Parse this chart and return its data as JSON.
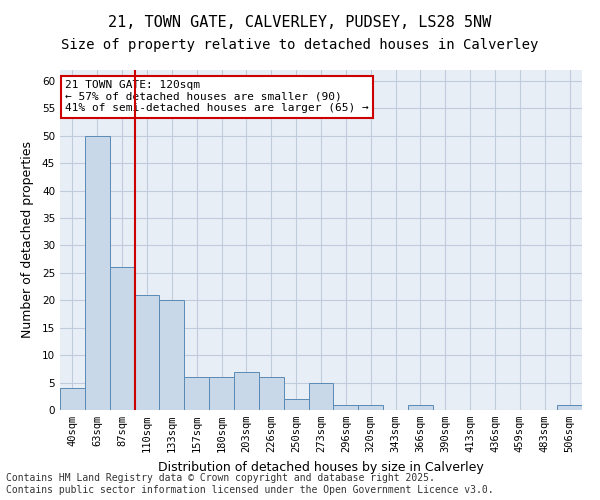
{
  "title_line1": "21, TOWN GATE, CALVERLEY, PUDSEY, LS28 5NW",
  "title_line2": "Size of property relative to detached houses in Calverley",
  "xlabel": "Distribution of detached houses by size in Calverley",
  "ylabel": "Number of detached properties",
  "categories": [
    "40sqm",
    "63sqm",
    "87sqm",
    "110sqm",
    "133sqm",
    "157sqm",
    "180sqm",
    "203sqm",
    "226sqm",
    "250sqm",
    "273sqm",
    "296sqm",
    "320sqm",
    "343sqm",
    "366sqm",
    "390sqm",
    "413sqm",
    "436sqm",
    "459sqm",
    "483sqm",
    "506sqm"
  ],
  "values": [
    4,
    50,
    26,
    21,
    20,
    6,
    6,
    7,
    6,
    2,
    5,
    1,
    1,
    0,
    1,
    0,
    0,
    0,
    0,
    0,
    1
  ],
  "bar_color": "#c8d8e8",
  "bar_edge_color": "#5a8ab5",
  "grid_color": "#c0ccdd",
  "background_color": "#e8eef5",
  "ylim": [
    0,
    62
  ],
  "yticks": [
    0,
    5,
    10,
    15,
    20,
    25,
    30,
    35,
    40,
    45,
    50,
    55,
    60
  ],
  "annotation_text": "21 TOWN GATE: 120sqm\n← 57% of detached houses are smaller (90)\n41% of semi-detached houses are larger (65) →",
  "vline_index": 3,
  "annotation_box_color": "#ffffff",
  "annotation_box_edge": "#cc0000",
  "footnote": "Contains HM Land Registry data © Crown copyright and database right 2025.\nContains public sector information licensed under the Open Government Licence v3.0.",
  "title_fontsize": 11,
  "subtitle_fontsize": 10,
  "xlabel_fontsize": 9,
  "ylabel_fontsize": 9,
  "tick_fontsize": 7.5,
  "annotation_fontsize": 8,
  "footnote_fontsize": 7
}
